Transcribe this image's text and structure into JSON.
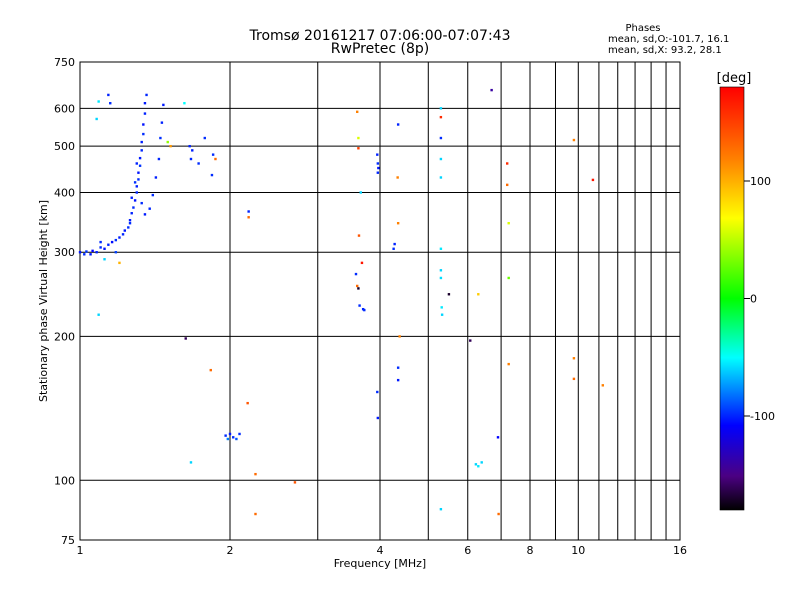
{
  "chart_data": {
    "type": "scatter",
    "title": "Tromsø 20161217 07:06:00-07:07:43",
    "subtitle": "RwPretec (8p)",
    "xlabel": "Frequency [MHz]",
    "ylabel": "Stationary phase Virtual Height [km]",
    "xscale": "log",
    "yscale": "log",
    "xlim": [
      1,
      16
    ],
    "ylim": [
      75,
      750
    ],
    "x_ticks": [
      1,
      2,
      4,
      6,
      8,
      10,
      16
    ],
    "y_ticks": [
      75,
      100,
      200,
      300,
      400,
      500,
      600,
      750
    ],
    "grid": true,
    "phase_info": {
      "title": "Phases",
      "line1": "mean, sd,O:-101.7, 16.1",
      "line2": "mean, sd,X:  93.2, 28.1"
    },
    "colorbar": {
      "label": "[deg]",
      "range": [
        -180,
        180
      ],
      "ticks": [
        100,
        0,
        -100
      ]
    },
    "points": [
      {
        "x": 1.0,
        "y": 300,
        "p": -105
      },
      {
        "x": 1.02,
        "y": 297,
        "p": -100
      },
      {
        "x": 1.03,
        "y": 301,
        "p": -98
      },
      {
        "x": 1.05,
        "y": 297,
        "p": -104
      },
      {
        "x": 1.06,
        "y": 302,
        "p": -110
      },
      {
        "x": 1.08,
        "y": 300,
        "p": -102
      },
      {
        "x": 1.1,
        "y": 307,
        "p": -100
      },
      {
        "x": 1.12,
        "y": 305,
        "p": -106
      },
      {
        "x": 1.14,
        "y": 311,
        "p": -101
      },
      {
        "x": 1.16,
        "y": 315,
        "p": -108
      },
      {
        "x": 1.18,
        "y": 318,
        "p": -99
      },
      {
        "x": 1.2,
        "y": 322,
        "p": -103
      },
      {
        "x": 1.22,
        "y": 327,
        "p": -101
      },
      {
        "x": 1.23,
        "y": 333,
        "p": -105
      },
      {
        "x": 1.25,
        "y": 338,
        "p": -100
      },
      {
        "x": 1.26,
        "y": 350,
        "p": -104
      },
      {
        "x": 1.27,
        "y": 362,
        "p": -102
      },
      {
        "x": 1.28,
        "y": 372,
        "p": -100
      },
      {
        "x": 1.29,
        "y": 385,
        "p": -106
      },
      {
        "x": 1.3,
        "y": 400,
        "p": -101
      },
      {
        "x": 1.3,
        "y": 412,
        "p": -103
      },
      {
        "x": 1.31,
        "y": 426,
        "p": -100
      },
      {
        "x": 1.31,
        "y": 440,
        "p": -105
      },
      {
        "x": 1.32,
        "y": 455,
        "p": -98
      },
      {
        "x": 1.32,
        "y": 472,
        "p": -104
      },
      {
        "x": 1.33,
        "y": 490,
        "p": -101
      },
      {
        "x": 1.33,
        "y": 510,
        "p": -103
      },
      {
        "x": 1.34,
        "y": 530,
        "p": -100
      },
      {
        "x": 1.34,
        "y": 555,
        "p": -106
      },
      {
        "x": 1.35,
        "y": 585,
        "p": -102
      },
      {
        "x": 1.35,
        "y": 615,
        "p": -104
      },
      {
        "x": 1.36,
        "y": 640,
        "p": -101
      },
      {
        "x": 1.27,
        "y": 390,
        "p": -103
      },
      {
        "x": 1.29,
        "y": 420,
        "p": -99
      },
      {
        "x": 1.3,
        "y": 460,
        "p": -102
      },
      {
        "x": 1.33,
        "y": 380,
        "p": -100
      },
      {
        "x": 1.35,
        "y": 360,
        "p": -104
      },
      {
        "x": 1.38,
        "y": 370,
        "p": -101
      },
      {
        "x": 1.4,
        "y": 395,
        "p": -100
      },
      {
        "x": 1.42,
        "y": 430,
        "p": -103
      },
      {
        "x": 1.44,
        "y": 470,
        "p": -101
      },
      {
        "x": 1.45,
        "y": 520,
        "p": -99
      },
      {
        "x": 1.46,
        "y": 560,
        "p": -102
      },
      {
        "x": 1.47,
        "y": 610,
        "p": -104
      },
      {
        "x": 1.12,
        "y": 290,
        "p": -60
      },
      {
        "x": 1.18,
        "y": 300,
        "p": -95
      },
      {
        "x": 1.1,
        "y": 315,
        "p": -100
      },
      {
        "x": 1.26,
        "y": 345,
        "p": -100
      },
      {
        "x": 1.14,
        "y": 640,
        "p": -102
      },
      {
        "x": 1.15,
        "y": 615,
        "p": -100
      },
      {
        "x": 1.09,
        "y": 620,
        "p": -55
      },
      {
        "x": 1.08,
        "y": 570,
        "p": -60
      },
      {
        "x": 1.09,
        "y": 222,
        "p": -60
      },
      {
        "x": 1.2,
        "y": 285,
        "p": 100
      },
      {
        "x": 1.5,
        "y": 510,
        "p": 40
      },
      {
        "x": 1.52,
        "y": 500,
        "p": 110
      },
      {
        "x": 1.62,
        "y": 615,
        "p": -50
      },
      {
        "x": 1.66,
        "y": 500,
        "p": -102
      },
      {
        "x": 1.67,
        "y": 470,
        "p": -101
      },
      {
        "x": 1.68,
        "y": 490,
        "p": -103
      },
      {
        "x": 1.73,
        "y": 460,
        "p": -100
      },
      {
        "x": 1.78,
        "y": 520,
        "p": -100
      },
      {
        "x": 1.85,
        "y": 480,
        "p": -100
      },
      {
        "x": 1.84,
        "y": 435,
        "p": -100
      },
      {
        "x": 1.87,
        "y": 470,
        "p": 130
      },
      {
        "x": 1.63,
        "y": 198,
        "p": -160
      },
      {
        "x": 1.67,
        "y": 109,
        "p": -60
      },
      {
        "x": 1.83,
        "y": 170,
        "p": 130
      },
      {
        "x": 1.96,
        "y": 124,
        "p": -100
      },
      {
        "x": 1.98,
        "y": 122,
        "p": -80
      },
      {
        "x": 2.0,
        "y": 125,
        "p": -105
      },
      {
        "x": 2.03,
        "y": 123,
        "p": -100
      },
      {
        "x": 2.06,
        "y": 122,
        "p": -90
      },
      {
        "x": 2.09,
        "y": 125,
        "p": -100
      },
      {
        "x": 2.18,
        "y": 365,
        "p": -102
      },
      {
        "x": 2.18,
        "y": 355,
        "p": 130
      },
      {
        "x": 2.17,
        "y": 145,
        "p": 140
      },
      {
        "x": 2.25,
        "y": 103,
        "p": 130
      },
      {
        "x": 2.25,
        "y": 85,
        "p": 130
      },
      {
        "x": 2.7,
        "y": 99,
        "p": 140
      },
      {
        "x": 3.6,
        "y": 590,
        "p": 120
      },
      {
        "x": 3.62,
        "y": 520,
        "p": 60
      },
      {
        "x": 3.62,
        "y": 495,
        "p": 150
      },
      {
        "x": 3.66,
        "y": 400,
        "p": -60
      },
      {
        "x": 3.68,
        "y": 285,
        "p": 170
      },
      {
        "x": 3.63,
        "y": 325,
        "p": 140
      },
      {
        "x": 3.58,
        "y": 270,
        "p": -100
      },
      {
        "x": 3.6,
        "y": 255,
        "p": 130
      },
      {
        "x": 3.62,
        "y": 252,
        "p": -170
      },
      {
        "x": 3.64,
        "y": 232,
        "p": -100
      },
      {
        "x": 3.7,
        "y": 228,
        "p": -102
      },
      {
        "x": 3.72,
        "y": 227,
        "p": -100
      },
      {
        "x": 3.95,
        "y": 480,
        "p": -102
      },
      {
        "x": 3.96,
        "y": 460,
        "p": -100
      },
      {
        "x": 3.97,
        "y": 450,
        "p": -105
      },
      {
        "x": 3.96,
        "y": 440,
        "p": -101
      },
      {
        "x": 3.95,
        "y": 153,
        "p": -100
      },
      {
        "x": 3.96,
        "y": 135,
        "p": -104
      },
      {
        "x": 4.35,
        "y": 555,
        "p": -102
      },
      {
        "x": 4.34,
        "y": 430,
        "p": 120
      },
      {
        "x": 4.35,
        "y": 345,
        "p": 120
      },
      {
        "x": 4.28,
        "y": 312,
        "p": -102
      },
      {
        "x": 4.26,
        "y": 305,
        "p": -100
      },
      {
        "x": 4.38,
        "y": 200,
        "p": 120
      },
      {
        "x": 4.35,
        "y": 172,
        "p": -100
      },
      {
        "x": 4.35,
        "y": 162,
        "p": -104
      },
      {
        "x": 5.3,
        "y": 600,
        "p": -60
      },
      {
        "x": 5.3,
        "y": 575,
        "p": 160
      },
      {
        "x": 5.3,
        "y": 520,
        "p": -100
      },
      {
        "x": 5.3,
        "y": 470,
        "p": -60
      },
      {
        "x": 5.3,
        "y": 430,
        "p": -60
      },
      {
        "x": 5.3,
        "y": 305,
        "p": -55
      },
      {
        "x": 5.3,
        "y": 275,
        "p": -60
      },
      {
        "x": 5.3,
        "y": 265,
        "p": -58
      },
      {
        "x": 5.32,
        "y": 230,
        "p": -55
      },
      {
        "x": 5.33,
        "y": 222,
        "p": -60
      },
      {
        "x": 5.5,
        "y": 245,
        "p": -170
      },
      {
        "x": 5.3,
        "y": 87,
        "p": -60
      },
      {
        "x": 6.07,
        "y": 196,
        "p": -160
      },
      {
        "x": 6.23,
        "y": 108,
        "p": -60
      },
      {
        "x": 6.3,
        "y": 107,
        "p": -55
      },
      {
        "x": 6.4,
        "y": 109,
        "p": -60
      },
      {
        "x": 6.3,
        "y": 245,
        "p": 90
      },
      {
        "x": 6.7,
        "y": 655,
        "p": -140
      },
      {
        "x": 6.9,
        "y": 123,
        "p": -110
      },
      {
        "x": 6.92,
        "y": 85,
        "p": 130
      },
      {
        "x": 7.2,
        "y": 460,
        "p": 160
      },
      {
        "x": 7.2,
        "y": 415,
        "p": 130
      },
      {
        "x": 7.25,
        "y": 345,
        "p": 60
      },
      {
        "x": 7.25,
        "y": 265,
        "p": 30
      },
      {
        "x": 7.25,
        "y": 175,
        "p": 120
      },
      {
        "x": 9.8,
        "y": 515,
        "p": 120
      },
      {
        "x": 9.8,
        "y": 180,
        "p": 120
      },
      {
        "x": 9.8,
        "y": 163,
        "p": 130
      },
      {
        "x": 10.7,
        "y": 425,
        "p": 170
      },
      {
        "x": 11.2,
        "y": 158,
        "p": 120
      }
    ]
  }
}
